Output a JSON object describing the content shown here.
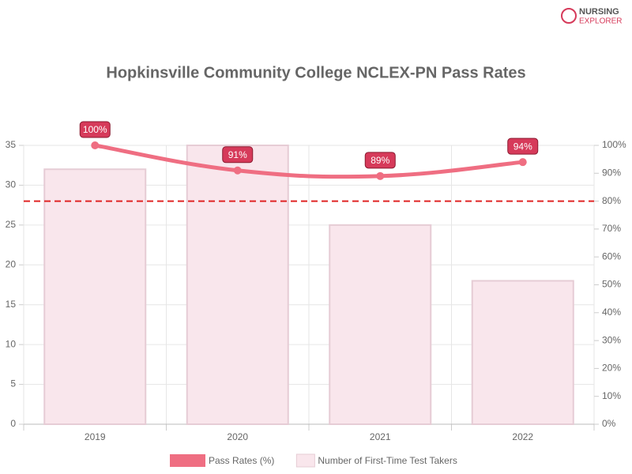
{
  "logo": {
    "line1": "NURSING",
    "line2": "EXPLORER"
  },
  "chart_data": {
    "type": "bar-line",
    "title": "Hopkinsville Community College NCLEX-PN Pass Rates",
    "categories": [
      "2019",
      "2020",
      "2021",
      "2022"
    ],
    "series": [
      {
        "name": "Pass Rates (%)",
        "type": "line",
        "axis": "y2",
        "color": "#ef6e82",
        "values": [
          100,
          91,
          89,
          94
        ],
        "value_labels": [
          "100%",
          "91%",
          "89%",
          "94%"
        ]
      },
      {
        "name": "Number of First-Time Test Takers",
        "type": "bar",
        "axis": "y",
        "color": "#f9e6ec",
        "values": [
          32,
          35,
          25,
          18
        ]
      }
    ],
    "ylim": [
      0,
      35
    ],
    "yticks": [
      0,
      5,
      10,
      15,
      20,
      25,
      30,
      35
    ],
    "y2lim": [
      0,
      100
    ],
    "y2ticks": [
      {
        "value": 0,
        "label": "0%"
      },
      {
        "value": 10,
        "label": "10%"
      },
      {
        "value": 20,
        "label": "20%"
      },
      {
        "value": 30,
        "label": "30%"
      },
      {
        "value": 40,
        "label": "40%"
      },
      {
        "value": 50,
        "label": "50%"
      },
      {
        "value": 60,
        "label": "60%"
      },
      {
        "value": 70,
        "label": "70%"
      },
      {
        "value": 80,
        "label": "80%"
      },
      {
        "value": 90,
        "label": "90%"
      },
      {
        "value": 100,
        "label": "100%"
      }
    ],
    "benchmark": {
      "value": 80,
      "axis": "y2",
      "color": "#e02424"
    },
    "grid": true,
    "legend": "bottom"
  }
}
